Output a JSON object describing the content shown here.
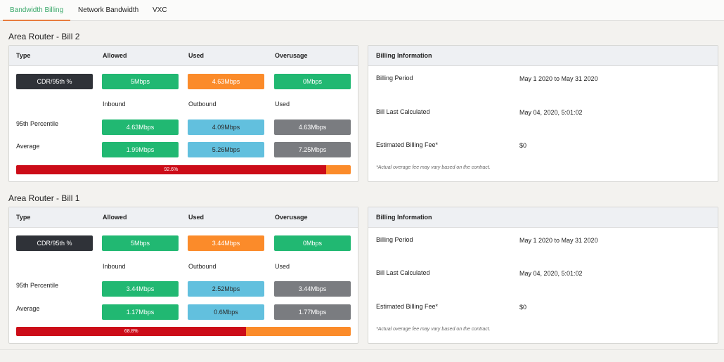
{
  "tabs": [
    "Bandwidth Billing",
    "Network Bandwidth",
    "VXC"
  ],
  "bills": [
    {
      "title": "Area Router - Bill 2",
      "headers": {
        "type": "Type",
        "allowed": "Allowed",
        "used": "Used",
        "overusage": "Overusage"
      },
      "type_value": "CDR/95th %",
      "allowed": "5Mbps",
      "used": "4.63Mbps",
      "overusage": "0Mbps",
      "sub_headers": {
        "inbound": "Inbound",
        "outbound": "Outbound",
        "used": "Used"
      },
      "percentile_label": "95th Percentile",
      "percentile": {
        "inbound": "4.63Mbps",
        "outbound": "4.09Mbps",
        "used": "4.63Mbps"
      },
      "average_label": "Average",
      "average": {
        "inbound": "1.99Mbps",
        "outbound": "5.26Mbps",
        "used": "7.25Mbps"
      },
      "progress": {
        "fraction": 0.926,
        "label": "92.6%"
      },
      "billing": {
        "header": "Billing Information",
        "period_label": "Billing Period",
        "period_value": "May 1 2020 to May 31 2020",
        "calc_label": "Bill Last Calculated",
        "calc_value": "May 04, 2020, 5:01:02",
        "fee_label": "Estimated Billing Fee*",
        "fee_value": "$0",
        "note": "*Actual overage fee may vary based on the contract."
      }
    },
    {
      "title": "Area Router - Bill 1",
      "headers": {
        "type": "Type",
        "allowed": "Allowed",
        "used": "Used",
        "overusage": "Overusage"
      },
      "type_value": "CDR/95th %",
      "allowed": "5Mbps",
      "used": "3.44Mbps",
      "overusage": "0Mbps",
      "sub_headers": {
        "inbound": "Inbound",
        "outbound": "Outbound",
        "used": "Used"
      },
      "percentile_label": "95th Percentile",
      "percentile": {
        "inbound": "3.44Mbps",
        "outbound": "2.52Mbps",
        "used": "3.44Mbps"
      },
      "average_label": "Average",
      "average": {
        "inbound": "1.17Mbps",
        "outbound": "0.6Mbps",
        "used": "1.77Mbps"
      },
      "progress": {
        "fraction": 0.688,
        "label": "68.8%"
      },
      "billing": {
        "header": "Billing Information",
        "period_label": "Billing Period",
        "period_value": "May 1 2020 to May 31 2020",
        "calc_label": "Bill Last Calculated",
        "calc_value": "May 04, 2020, 5:01:02",
        "fee_label": "Estimated Billing Fee*",
        "fee_value": "$0",
        "note": "*Actual overage fee may vary based on the contract."
      }
    }
  ],
  "colors": {
    "tab_active": "#3aa86a",
    "tab_underline": "#e87c3e",
    "green": "#21b872",
    "orange": "#fb8b2a",
    "blue": "#62c0de",
    "gray": "#7a7c80",
    "dark": "#2f3238",
    "progress_fill": "#cc0c18"
  }
}
